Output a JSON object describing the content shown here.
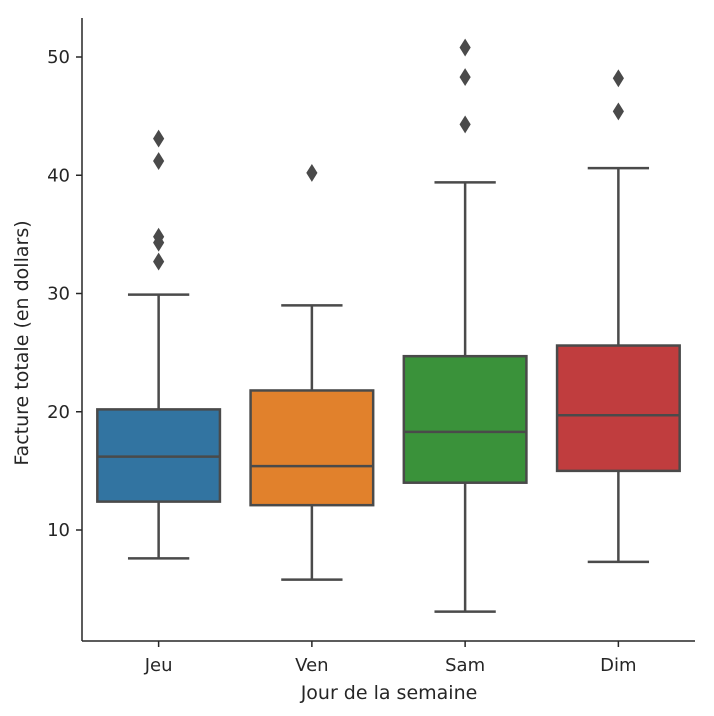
{
  "chart_data": {
    "type": "boxplot",
    "title": "",
    "xlabel": "Jour de la semaine",
    "ylabel": "Facture totale (en dollars)",
    "ylim": [
      0,
      53
    ],
    "yticks": [
      10,
      20,
      30,
      40,
      50
    ],
    "grid": false,
    "categories": [
      "Jeu",
      "Ven",
      "Sam",
      "Dim"
    ],
    "colors": [
      "#3274a1",
      "#e1812c",
      "#3a923a",
      "#c03d3e"
    ],
    "boxes": [
      {
        "category": "Jeu",
        "whisker_low": 7.6,
        "q1": 12.4,
        "median": 16.2,
        "q3": 20.2,
        "whisker_high": 29.9,
        "outliers": [
          32.7,
          34.3,
          34.8,
          41.2,
          43.1
        ]
      },
      {
        "category": "Ven",
        "whisker_low": 5.8,
        "q1": 12.1,
        "median": 15.4,
        "q3": 21.8,
        "whisker_high": 29.0,
        "outliers": [
          40.2
        ]
      },
      {
        "category": "Sam",
        "whisker_low": 3.1,
        "q1": 14.0,
        "median": 18.3,
        "q3": 24.7,
        "whisker_high": 39.4,
        "outliers": [
          44.3,
          48.3,
          50.8
        ]
      },
      {
        "category": "Dim",
        "whisker_low": 7.3,
        "q1": 15.0,
        "median": 19.7,
        "q3": 25.6,
        "whisker_high": 40.6,
        "outliers": [
          45.4,
          48.2
        ]
      }
    ]
  }
}
